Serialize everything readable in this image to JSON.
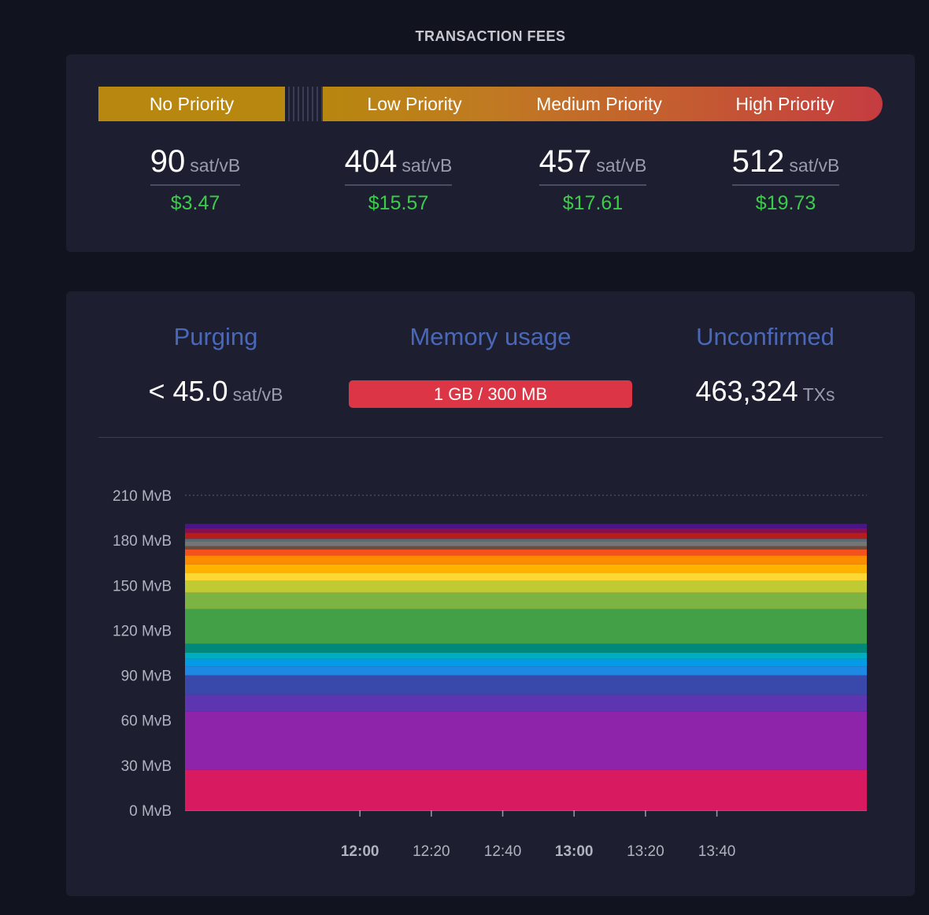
{
  "fees": {
    "title": "TRANSACTION FEES",
    "priorities": [
      {
        "label": "No Priority",
        "value": "90",
        "unit": "sat/vB",
        "usd": "$3.47"
      },
      {
        "label": "Low Priority",
        "value": "404",
        "unit": "sat/vB",
        "usd": "$15.57"
      },
      {
        "label": "Medium Priority",
        "value": "457",
        "unit": "sat/vB",
        "usd": "$17.61"
      },
      {
        "label": "High Priority",
        "value": "512",
        "unit": "sat/vB",
        "usd": "$19.73"
      }
    ],
    "colors": {
      "no_priority": "#b8870f",
      "high_priority": "#c53c40",
      "usd": "#3bcc49"
    }
  },
  "mempool": {
    "purging": {
      "label": "Purging",
      "value": "< 45.0",
      "unit": "sat/vB"
    },
    "memory": {
      "label": "Memory usage",
      "value": "1 GB / 300 MB",
      "color": "#dc3545"
    },
    "unconfirmed": {
      "label": "Unconfirmed",
      "value": "463,324",
      "unit": "TXs"
    }
  },
  "chart_data": {
    "type": "area",
    "stacked": true,
    "y_unit": "MvB",
    "ylim": [
      0,
      210
    ],
    "y_ticks": [
      "0 MvB",
      "30 MvB",
      "60 MvB",
      "90 MvB",
      "120 MvB",
      "150 MvB",
      "180 MvB",
      "210 MvB"
    ],
    "y_tick_values": [
      0,
      30,
      60,
      90,
      120,
      150,
      180,
      210
    ],
    "x_ticks": [
      {
        "label": "12:00",
        "bold": true
      },
      {
        "label": "12:20",
        "bold": false
      },
      {
        "label": "12:40",
        "bold": false
      },
      {
        "label": "13:00",
        "bold": true
      },
      {
        "label": "13:20",
        "bold": false
      },
      {
        "label": "13:40",
        "bold": false
      }
    ],
    "x_range_minutes": [
      -49,
      142
    ],
    "x_tick_minutes": [
      0,
      20,
      40,
      60,
      80,
      100
    ],
    "grid": false,
    "top_gridline": 210,
    "layers": [
      {
        "color": "#d81b60",
        "values": [
          27,
          27
        ]
      },
      {
        "color": "#8e24aa",
        "values": [
          39,
          39
        ]
      },
      {
        "color": "#5e35b1",
        "values": [
          11,
          11
        ]
      },
      {
        "color": "#3949ab",
        "values": [
          13,
          13
        ]
      },
      {
        "color": "#1e88e5",
        "values": [
          6,
          6
        ]
      },
      {
        "color": "#039be5",
        "values": [
          5,
          5
        ]
      },
      {
        "color": "#00acc1",
        "values": [
          4,
          4
        ]
      },
      {
        "color": "#00897b",
        "values": [
          6,
          6
        ]
      },
      {
        "color": "#43a047",
        "values": [
          23,
          23
        ]
      },
      {
        "color": "#7cb342",
        "values": [
          11,
          11
        ]
      },
      {
        "color": "#c0ca33",
        "values": [
          8,
          8
        ]
      },
      {
        "color": "#fdd835",
        "values": [
          5,
          5
        ]
      },
      {
        "color": "#ffb300",
        "values": [
          6,
          6
        ]
      },
      {
        "color": "#fb8c00",
        "values": [
          6,
          6
        ]
      },
      {
        "color": "#f4511e",
        "values": [
          4,
          4
        ]
      },
      {
        "color": "#6d4c41",
        "values": [
          2,
          2
        ]
      },
      {
        "color": "#757575",
        "values": [
          3,
          3
        ]
      },
      {
        "color": "#546e7a",
        "values": [
          2,
          2
        ]
      },
      {
        "color": "#b71c1c",
        "values": [
          4,
          4
        ]
      },
      {
        "color": "#880e4f",
        "values": [
          3,
          3
        ]
      },
      {
        "color": "#4a148c",
        "values": [
          3,
          3
        ]
      }
    ]
  }
}
